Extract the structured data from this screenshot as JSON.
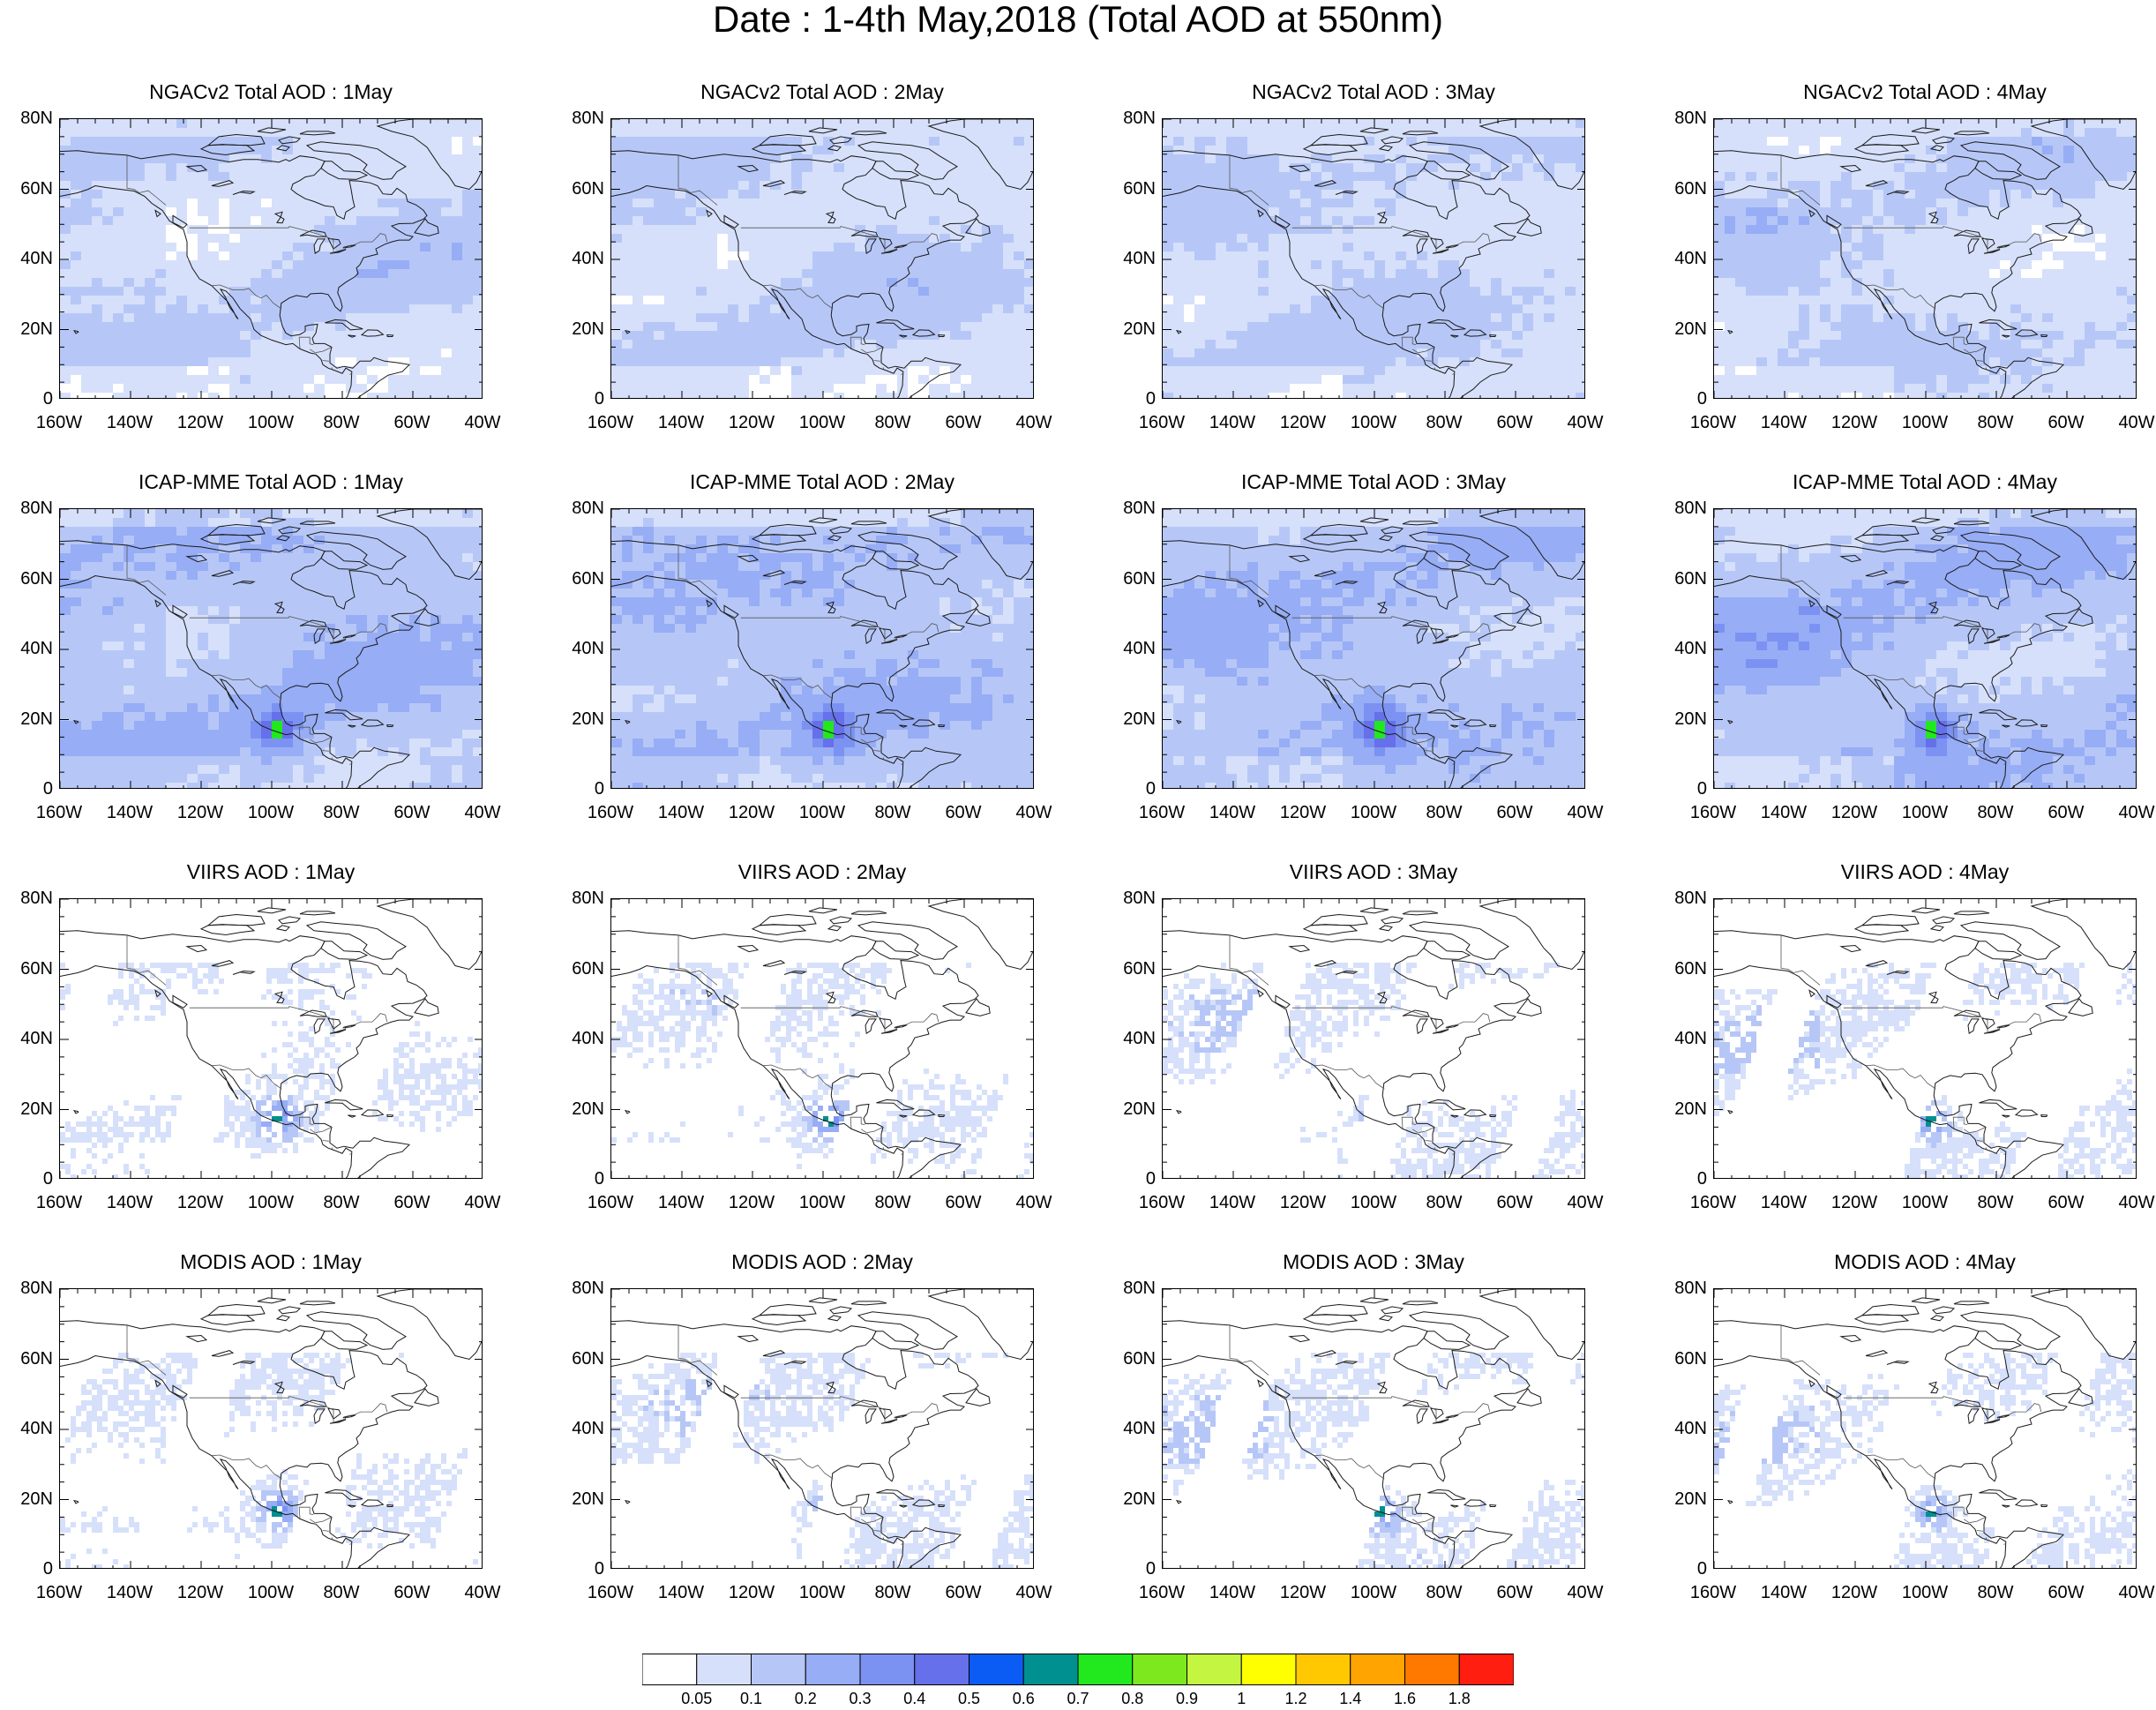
{
  "title": "Date : 1-4th May,2018 (Total AOD at 550nm)",
  "lat_labels": [
    "80N",
    "60N",
    "40N",
    "20N",
    "0"
  ],
  "lon_labels": [
    "160W",
    "140W",
    "120W",
    "100W",
    "80W",
    "60W",
    "40W"
  ],
  "panels": [
    {
      "title": "NGACv2 Total AOD : 1May",
      "kind": "model",
      "seed": 11,
      "base": 2,
      "plume": 0
    },
    {
      "title": "NGACv2 Total AOD : 2May",
      "kind": "model",
      "seed": 12,
      "base": 2,
      "plume": 0
    },
    {
      "title": "NGACv2 Total AOD : 3May",
      "kind": "model",
      "seed": 13,
      "base": 2,
      "plume": 0
    },
    {
      "title": "NGACv2 Total AOD : 4May",
      "kind": "model",
      "seed": 14,
      "base": 2,
      "plume": 0
    },
    {
      "title": "ICAP-MME Total AOD : 1May",
      "kind": "model",
      "seed": 21,
      "base": 3,
      "plume": 1
    },
    {
      "title": "ICAP-MME Total AOD : 2May",
      "kind": "model",
      "seed": 22,
      "base": 3,
      "plume": 1
    },
    {
      "title": "ICAP-MME Total AOD : 3May",
      "kind": "model",
      "seed": 23,
      "base": 3,
      "plume": 1
    },
    {
      "title": "ICAP-MME Total AOD : 4May",
      "kind": "model",
      "seed": 24,
      "base": 3,
      "plume": 1
    },
    {
      "title": "VIIRS AOD : 1May",
      "kind": "satellite",
      "seed": 31,
      "base": 2,
      "plume": 1
    },
    {
      "title": "VIIRS AOD : 2May",
      "kind": "satellite",
      "seed": 32,
      "base": 2,
      "plume": 1
    },
    {
      "title": "VIIRS AOD : 3May",
      "kind": "satellite",
      "seed": 33,
      "base": 2,
      "plume": 1
    },
    {
      "title": "VIIRS AOD : 4May",
      "kind": "satellite",
      "seed": 34,
      "base": 2,
      "plume": 1
    },
    {
      "title": "MODIS AOD : 1May",
      "kind": "satellite",
      "seed": 41,
      "base": 2,
      "plume": 1
    },
    {
      "title": "MODIS AOD : 2May",
      "kind": "satellite",
      "seed": 42,
      "base": 2,
      "plume": 1
    },
    {
      "title": "MODIS AOD : 3May",
      "kind": "satellite",
      "seed": 43,
      "base": 2,
      "plume": 1
    },
    {
      "title": "MODIS AOD : 4May",
      "kind": "satellite",
      "seed": 44,
      "base": 2,
      "plume": 1
    }
  ],
  "colorbar": {
    "colors": [
      "#ffffff",
      "#d6e0fa",
      "#b6c7f7",
      "#97adf5",
      "#7c92f2",
      "#6670ea",
      "#0a5cf5",
      "#009090",
      "#22e81e",
      "#7de81e",
      "#c4f540",
      "#ffff00",
      "#ffc800",
      "#ffa400",
      "#ff7800",
      "#ff1e10"
    ],
    "labels": [
      "0.05",
      "0.1",
      "0.2",
      "0.3",
      "0.4",
      "0.5",
      "0.6",
      "0.7",
      "0.8",
      "0.9",
      "1",
      "1.2",
      "1.4",
      "1.6",
      "1.8"
    ]
  }
}
